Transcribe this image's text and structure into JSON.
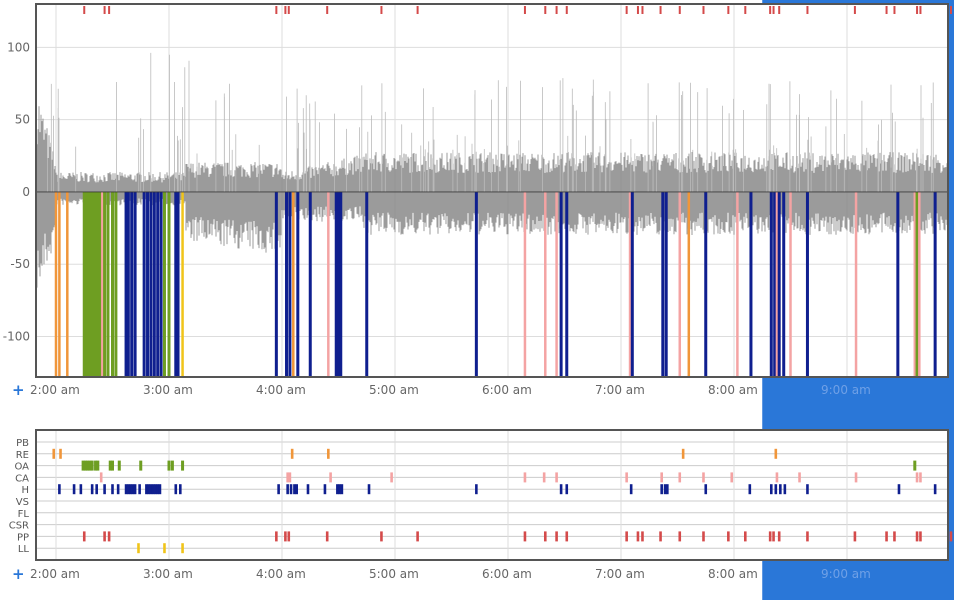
{
  "colors": {
    "selection": "#2a77d8",
    "frame": "#555555",
    "grid": "#dddddd",
    "waveform": "#8a8a8a",
    "zero_line": "#333333",
    "expand": "#2a77d8"
  },
  "expand_icon": "plus-icon",
  "chart_data": [
    {
      "type": "line",
      "title": "",
      "series": [
        {
          "name": "flow-waveform",
          "description": "gray respiratory flow trace with colored event markers below zero"
        }
      ],
      "x_range_hours": [
        1.8,
        9.95
      ],
      "x_ticks": [
        {
          "hour": 2,
          "label": "2:00 am"
        },
        {
          "hour": 3,
          "label": "3:00 am"
        },
        {
          "hour": 4,
          "label": "4:00 am"
        },
        {
          "hour": 5,
          "label": "5:00 am"
        },
        {
          "hour": 6,
          "label": "6:00 am"
        },
        {
          "hour": 7,
          "label": "7:00 am"
        },
        {
          "hour": 8,
          "label": "8:00 am"
        },
        {
          "hour": 9,
          "label": "9:00 am"
        }
      ],
      "y_ticks": [
        100,
        50,
        0,
        -50,
        -100
      ],
      "ylim": [
        -128,
        130
      ],
      "selection_hours": [
        8.25,
        9.95
      ],
      "pp_marks": [
        2.25,
        2.43,
        2.47,
        3.95,
        4.03,
        4.06,
        4.4,
        4.88,
        5.2,
        6.15,
        6.33,
        6.43,
        6.52,
        7.05,
        7.15,
        7.19,
        7.35,
        7.52,
        7.73,
        7.95,
        8.1,
        8.32,
        8.35,
        8.4,
        8.65,
        9.07,
        9.35,
        9.42,
        9.62,
        9.65,
        9.92
      ],
      "event_lines": [
        {
          "h": 2.0,
          "c": "RE"
        },
        {
          "h": 2.03,
          "c": "RE"
        },
        {
          "h": 2.1,
          "c": "RE"
        },
        {
          "h": 2.25,
          "c": "OA"
        },
        {
          "h": 2.27,
          "c": "OA"
        },
        {
          "h": 2.29,
          "c": "OA"
        },
        {
          "h": 2.31,
          "c": "OA"
        },
        {
          "h": 2.33,
          "c": "OA"
        },
        {
          "h": 2.35,
          "c": "OA"
        },
        {
          "h": 2.37,
          "c": "OA"
        },
        {
          "h": 2.39,
          "c": "OA"
        },
        {
          "h": 2.41,
          "c": "CA"
        },
        {
          "h": 2.43,
          "c": "OA"
        },
        {
          "h": 2.46,
          "c": "OA"
        },
        {
          "h": 2.5,
          "c": "OA"
        },
        {
          "h": 2.53,
          "c": "OA"
        },
        {
          "h": 2.62,
          "c": "H"
        },
        {
          "h": 2.64,
          "c": "H"
        },
        {
          "h": 2.67,
          "c": "H"
        },
        {
          "h": 2.7,
          "c": "H"
        },
        {
          "h": 2.78,
          "c": "H"
        },
        {
          "h": 2.81,
          "c": "H"
        },
        {
          "h": 2.84,
          "c": "H"
        },
        {
          "h": 2.87,
          "c": "H"
        },
        {
          "h": 2.9,
          "c": "H"
        },
        {
          "h": 2.93,
          "c": "H"
        },
        {
          "h": 2.96,
          "c": "OA"
        },
        {
          "h": 3.0,
          "c": "OA"
        },
        {
          "h": 3.06,
          "c": "H"
        },
        {
          "h": 3.08,
          "c": "H"
        },
        {
          "h": 3.12,
          "c": "LL"
        },
        {
          "h": 3.95,
          "c": "H"
        },
        {
          "h": 4.04,
          "c": "H"
        },
        {
          "h": 4.07,
          "c": "H"
        },
        {
          "h": 4.1,
          "c": "RE"
        },
        {
          "h": 4.14,
          "c": "H"
        },
        {
          "h": 4.25,
          "c": "H"
        },
        {
          "h": 4.41,
          "c": "CA"
        },
        {
          "h": 4.48,
          "c": "H"
        },
        {
          "h": 4.5,
          "c": "H"
        },
        {
          "h": 4.52,
          "c": "H"
        },
        {
          "h": 4.75,
          "c": "H"
        },
        {
          "h": 5.72,
          "c": "H"
        },
        {
          "h": 6.15,
          "c": "CA"
        },
        {
          "h": 6.33,
          "c": "CA"
        },
        {
          "h": 6.43,
          "c": "CA"
        },
        {
          "h": 6.47,
          "c": "H"
        },
        {
          "h": 6.52,
          "c": "H"
        },
        {
          "h": 7.08,
          "c": "CA"
        },
        {
          "h": 7.1,
          "c": "H"
        },
        {
          "h": 7.37,
          "c": "H"
        },
        {
          "h": 7.4,
          "c": "H"
        },
        {
          "h": 7.52,
          "c": "CA"
        },
        {
          "h": 7.6,
          "c": "RE"
        },
        {
          "h": 7.75,
          "c": "H"
        },
        {
          "h": 8.03,
          "c": "CA"
        },
        {
          "h": 8.15,
          "c": "H"
        },
        {
          "h": 8.33,
          "c": "H"
        },
        {
          "h": 8.36,
          "c": "H"
        },
        {
          "h": 8.38,
          "c": "CA"
        },
        {
          "h": 8.4,
          "c": "H"
        },
        {
          "h": 8.44,
          "c": "H"
        },
        {
          "h": 8.5,
          "c": "CA"
        },
        {
          "h": 8.65,
          "c": "H"
        },
        {
          "h": 9.08,
          "c": "CA"
        },
        {
          "h": 9.45,
          "c": "H"
        },
        {
          "h": 9.6,
          "c": "CA"
        },
        {
          "h": 9.62,
          "c": "OA"
        },
        {
          "h": 9.64,
          "c": "CA"
        },
        {
          "h": 9.78,
          "c": "H"
        }
      ]
    },
    {
      "type": "scatter",
      "title": "",
      "categories": [
        "PB",
        "RE",
        "OA",
        "CA",
        "H",
        "VS",
        "FL",
        "CSR",
        "PP",
        "LL"
      ],
      "category_colors": {
        "PB": "#888888",
        "RE": "#f0963a",
        "OA": "#6e9e22",
        "CA": "#f4a3a3",
        "H": "#0f1f8f",
        "VS": "#888888",
        "FL": "#888888",
        "CSR": "#888888",
        "PP": "#d44a4a",
        "LL": "#f0c419"
      },
      "x_ticks": [
        {
          "hour": 2,
          "label": "2:00 am"
        },
        {
          "hour": 3,
          "label": "3:00 am"
        },
        {
          "hour": 4,
          "label": "4:00 am"
        },
        {
          "hour": 5,
          "label": "5:00 am"
        },
        {
          "hour": 6,
          "label": "6:00 am"
        },
        {
          "hour": 7,
          "label": "7:00 am"
        },
        {
          "hour": 8,
          "label": "8:00 am"
        },
        {
          "hour": 9,
          "label": "9:00 am"
        }
      ],
      "events": {
        "PB": [],
        "RE": [
          1.98,
          2.04,
          4.09,
          4.41,
          7.55,
          8.37
        ],
        "OA": [
          2.24,
          2.26,
          2.28,
          2.3,
          2.32,
          2.35,
          2.37,
          2.48,
          2.5,
          2.56,
          2.75,
          3.0,
          3.03,
          3.12,
          9.6
        ],
        "CA": [
          2.4,
          4.05,
          4.07,
          4.43,
          4.97,
          6.15,
          6.32,
          6.43,
          7.05,
          7.36,
          7.52,
          7.73,
          7.98,
          8.38,
          8.58,
          9.08,
          9.62,
          9.65
        ],
        "H": [
          2.03,
          2.16,
          2.22,
          2.32,
          2.36,
          2.43,
          2.5,
          2.55,
          2.62,
          2.64,
          2.66,
          2.68,
          2.7,
          2.74,
          2.8,
          2.82,
          2.84,
          2.86,
          2.88,
          2.9,
          2.92,
          3.06,
          3.1,
          3.97,
          4.05,
          4.08,
          4.11,
          4.13,
          4.23,
          4.38,
          4.49,
          4.51,
          4.53,
          4.77,
          5.72,
          6.47,
          6.52,
          7.09,
          7.36,
          7.39,
          7.41,
          7.75,
          8.14,
          8.33,
          8.37,
          8.41,
          8.45,
          8.65,
          9.46,
          9.78
        ],
        "VS": [],
        "FL": [],
        "CSR": [],
        "PP": [
          2.25,
          2.43,
          2.47,
          3.95,
          4.03,
          4.06,
          4.4,
          4.88,
          5.2,
          6.15,
          6.33,
          6.43,
          6.52,
          7.05,
          7.15,
          7.19,
          7.35,
          7.52,
          7.73,
          7.95,
          8.1,
          8.32,
          8.35,
          8.4,
          8.65,
          9.07,
          9.35,
          9.42,
          9.62,
          9.65,
          9.92
        ],
        "LL": [
          2.73,
          2.96,
          3.12
        ]
      }
    }
  ]
}
